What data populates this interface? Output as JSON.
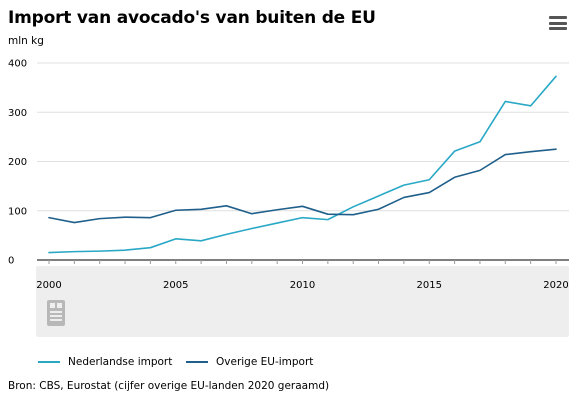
{
  "header": {
    "title": "Import van avocado's van buiten de EU",
    "unit_label": "mln kg",
    "menu_icon": "hamburger-menu-icon"
  },
  "chart_data": {
    "type": "line",
    "title": "Import van avocado's van buiten de EU",
    "ylabel": "mln kg",
    "xlabel": "",
    "x": [
      2000,
      2001,
      2002,
      2003,
      2004,
      2005,
      2006,
      2007,
      2008,
      2009,
      2010,
      2011,
      2012,
      2013,
      2014,
      2015,
      2016,
      2017,
      2018,
      2019,
      2020
    ],
    "xlim": [
      1999.5,
      2020.5
    ],
    "ylim": [
      0,
      400
    ],
    "x_ticks": [
      "2000",
      "2005",
      "2010",
      "2015",
      "2020"
    ],
    "y_ticks": [
      "0",
      "100",
      "200",
      "300",
      "400"
    ],
    "grid": true,
    "legend_position": "bottom-left",
    "series": [
      {
        "name": "Nederlandse import",
        "color": "#29a8c6",
        "values": [
          15,
          17,
          18,
          20,
          25,
          43,
          39,
          52,
          64,
          75,
          86,
          82,
          108,
          130,
          152,
          163,
          221,
          240,
          322,
          313,
          373
        ]
      },
      {
        "name": "Overige EU-import",
        "color": "#1f5f8b",
        "values": [
          86,
          76,
          84,
          87,
          86,
          101,
          103,
          110,
          94,
          102,
          109,
          93,
          92,
          103,
          127,
          137,
          168,
          182,
          214,
          220,
          225
        ]
      }
    ]
  },
  "navigator": {
    "logo_icon": "cbs-logo-icon"
  },
  "footer": {
    "source": "Bron: CBS, Eurostat (cijfer overige EU-landen 2020 geraamd)"
  }
}
